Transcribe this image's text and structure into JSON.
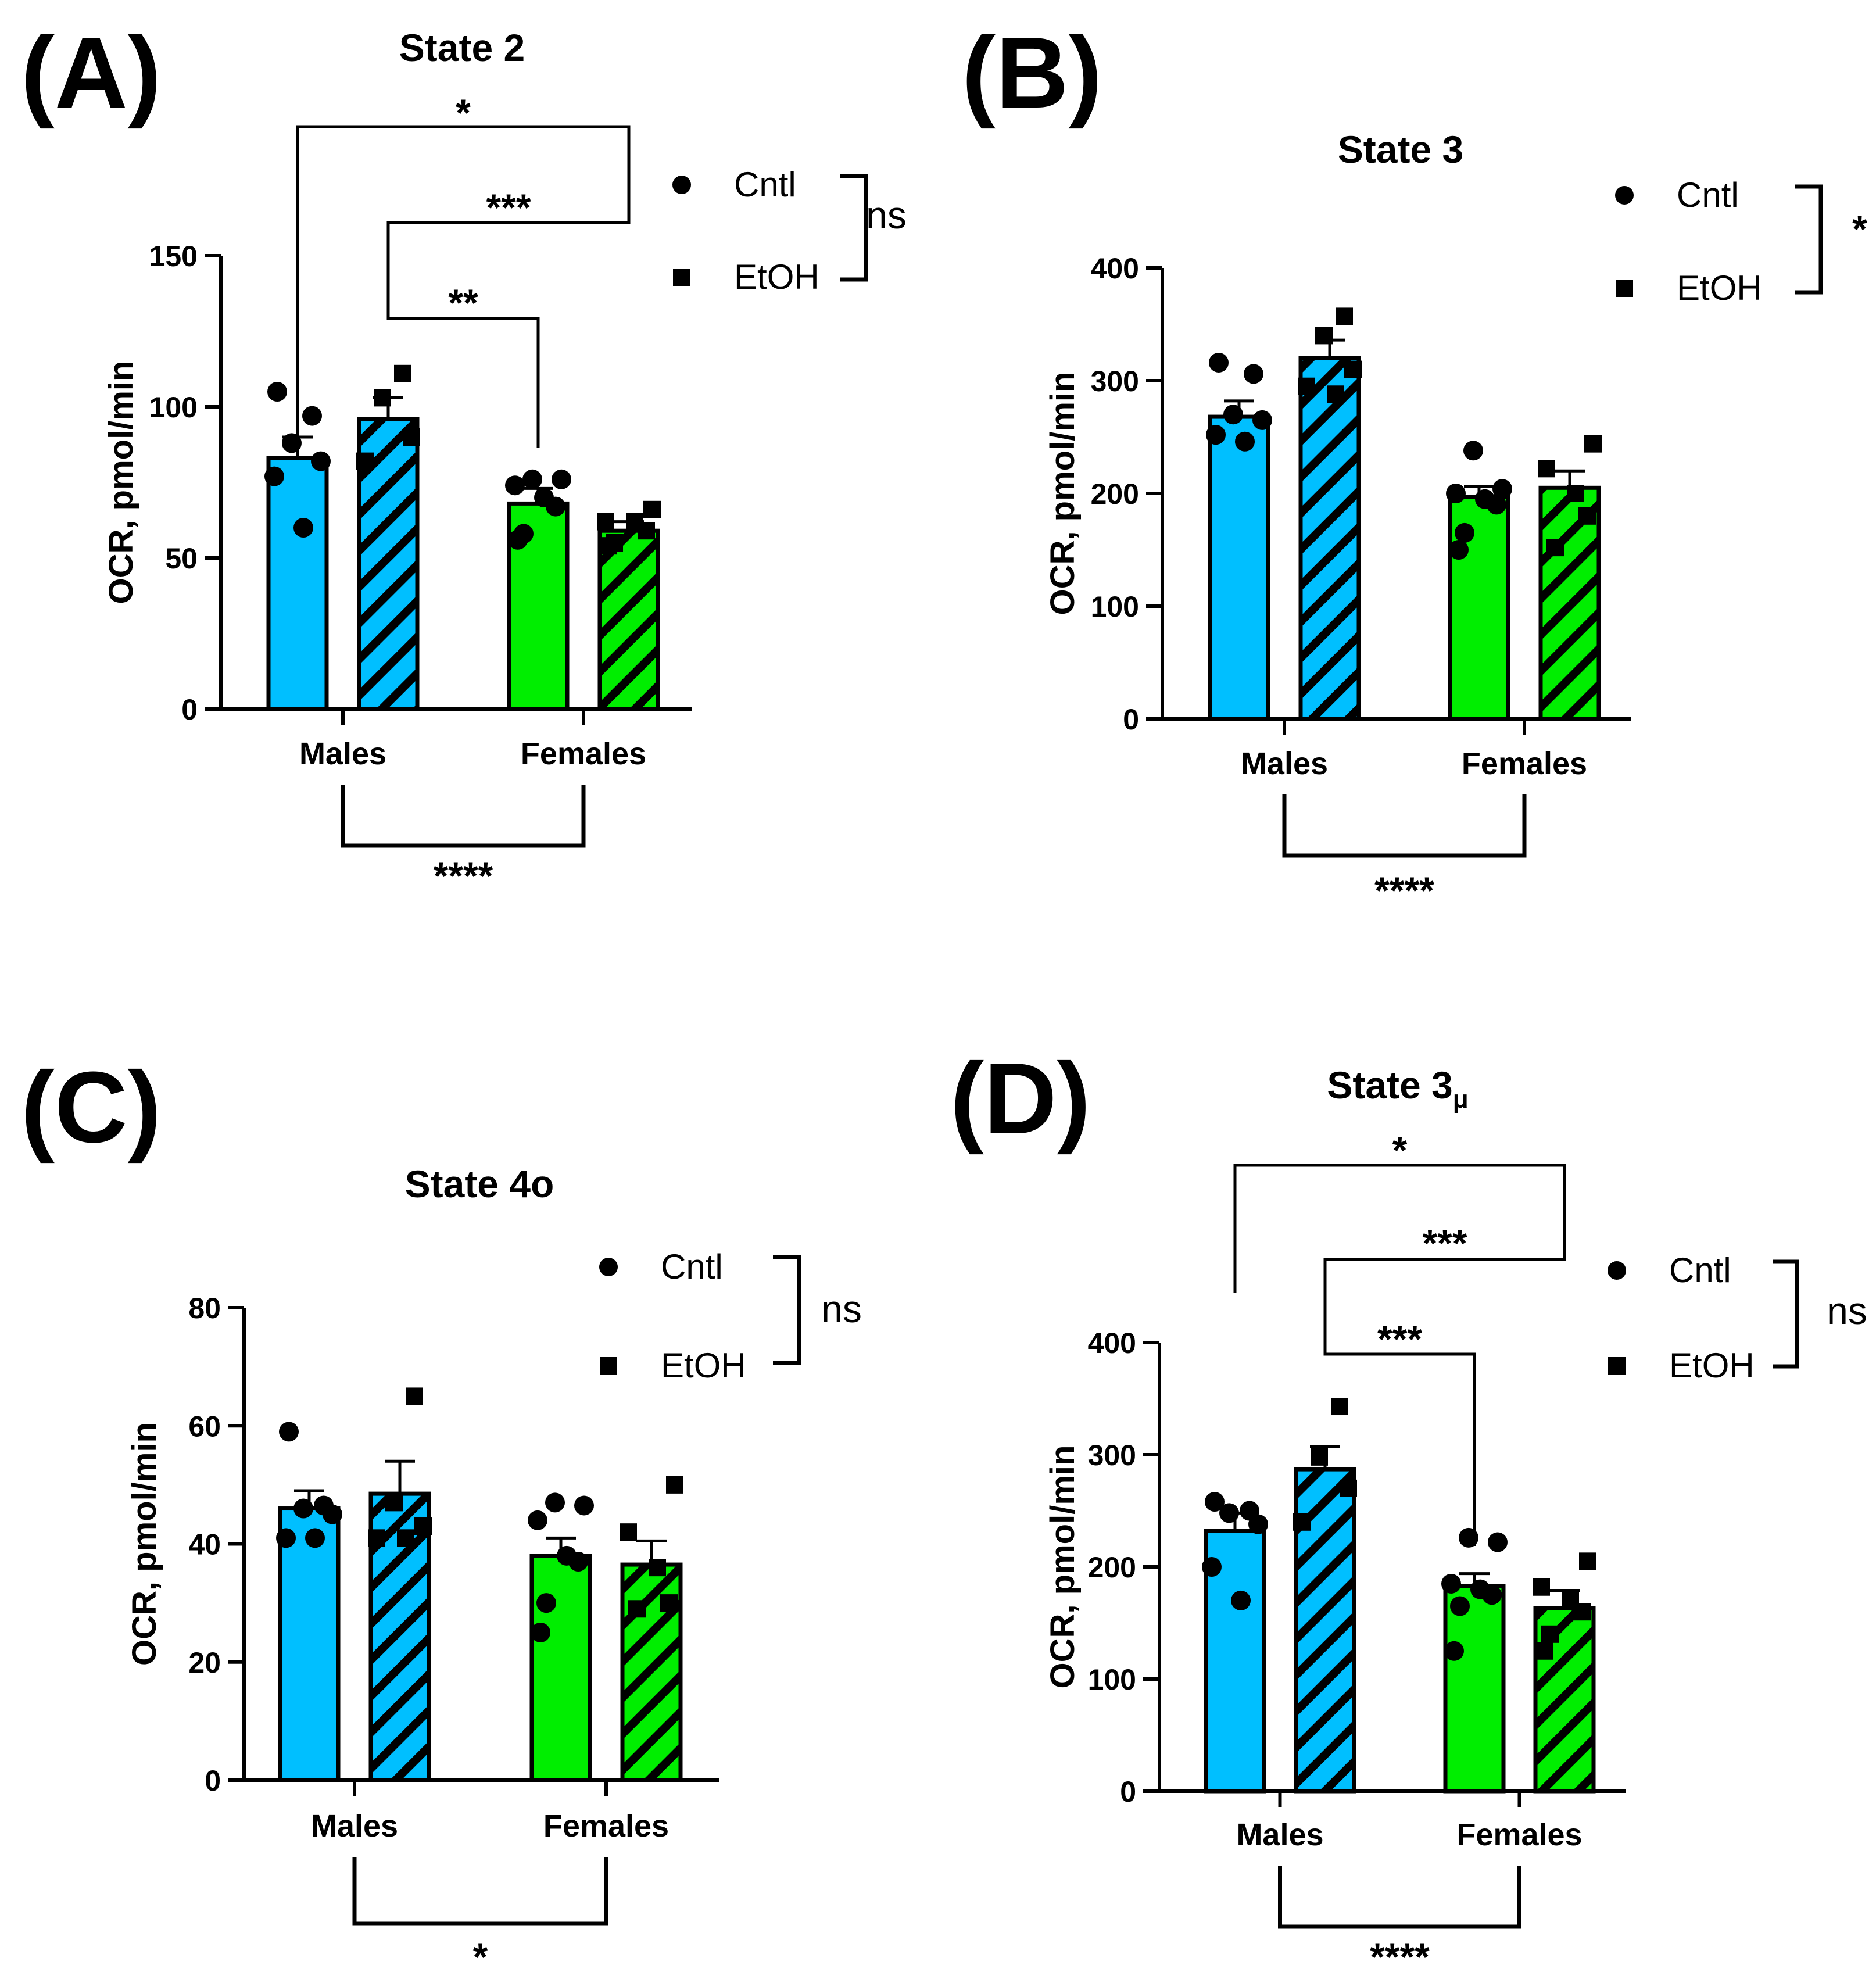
{
  "palette": {
    "male": "#00bfff",
    "female": "#00ee00",
    "line": "#000000",
    "background": "#ffffff"
  },
  "legend_icons": [
    "circle-marker-icon",
    "square-marker-icon"
  ],
  "chart_data": [
    {
      "panel": "(A)",
      "type": "bar",
      "title": "State 2",
      "title_sub": "",
      "ylabel": "OCR, pmol/min",
      "ylim": [
        0,
        150
      ],
      "yticks": [
        0,
        50,
        100,
        150
      ],
      "categories": [
        "Males",
        "Females"
      ],
      "series": [
        {
          "name": "Cntl",
          "values": [
            83,
            68
          ],
          "sem": [
            7,
            5
          ]
        },
        {
          "name": "EtOH",
          "values": [
            96,
            59
          ],
          "sem": [
            7,
            3
          ]
        }
      ],
      "points": [
        [
          105,
          97,
          88,
          82,
          77,
          60
        ],
        [
          111,
          103,
          90,
          82
        ],
        [
          76,
          76,
          74,
          70,
          67,
          58,
          56
        ],
        [
          66,
          62,
          62,
          59,
          55,
          54
        ]
      ],
      "legend": [
        "Cntl",
        "EtOH"
      ],
      "legend_test": "ns",
      "interaction_test": "****",
      "comparisons": [
        {
          "label": "*"
        },
        {
          "label": "***"
        },
        {
          "label": "**"
        }
      ]
    },
    {
      "panel": "(B)",
      "type": "bar",
      "title": "State 3",
      "title_sub": "",
      "ylabel": "OCR, pmol/min",
      "ylim": [
        0,
        400
      ],
      "yticks": [
        0,
        100,
        200,
        300,
        400
      ],
      "categories": [
        "Males",
        "Females"
      ],
      "series": [
        {
          "name": "Cntl",
          "values": [
            268,
            197
          ],
          "sem": [
            14,
            9
          ]
        },
        {
          "name": "EtOH",
          "values": [
            320,
            205
          ],
          "sem": [
            16,
            15
          ]
        }
      ],
      "points": [
        [
          316,
          306,
          270,
          265,
          252,
          246
        ],
        [
          357,
          340,
          310,
          295,
          288
        ],
        [
          238,
          204,
          200,
          195,
          190,
          165,
          150
        ],
        [
          244,
          222,
          200,
          180,
          152
        ]
      ],
      "legend": [
        "Cntl",
        "EtOH"
      ],
      "legend_test": "*",
      "interaction_test": "****",
      "comparisons": []
    },
    {
      "panel": "(C)",
      "type": "bar",
      "title": "State 4o",
      "title_sub": "",
      "ylabel": "OCR, pmol/min",
      "ylim": [
        0,
        80
      ],
      "yticks": [
        0,
        20,
        40,
        60,
        80
      ],
      "categories": [
        "Males",
        "Females"
      ],
      "series": [
        {
          "name": "Cntl",
          "values": [
            46,
            38
          ],
          "sem": [
            3,
            3
          ]
        },
        {
          "name": "EtOH",
          "values": [
            48.5,
            36.5
          ],
          "sem": [
            5.5,
            4
          ]
        }
      ],
      "points": [
        [
          59,
          46.5,
          46,
          45,
          41,
          41
        ],
        [
          65,
          47,
          43,
          41,
          41
        ],
        [
          47,
          46.5,
          44,
          38,
          37,
          30,
          25
        ],
        [
          50,
          42,
          36,
          30,
          29
        ]
      ],
      "legend": [
        "Cntl",
        "EtOH"
      ],
      "legend_test": "ns",
      "interaction_test": "*",
      "comparisons": []
    },
    {
      "panel": "(D)",
      "type": "bar",
      "title": "State 3",
      "title_sub": "μ",
      "ylabel": "OCR, pmol/min",
      "ylim": [
        0,
        400
      ],
      "yticks": [
        0,
        100,
        200,
        300,
        400
      ],
      "categories": [
        "Males",
        "Females"
      ],
      "series": [
        {
          "name": "Cntl",
          "values": [
            232,
            183
          ],
          "sem": [
            16,
            11
          ]
        },
        {
          "name": "EtOH",
          "values": [
            287,
            163
          ],
          "sem": [
            20,
            16
          ]
        }
      ],
      "points": [
        [
          258,
          250,
          248,
          238,
          200,
          170
        ],
        [
          343,
          298,
          270,
          240
        ],
        [
          226,
          222,
          185,
          180,
          175,
          165,
          125
        ],
        [
          205,
          182,
          170,
          160,
          140,
          125
        ]
      ],
      "legend": [
        "Cntl",
        "EtOH"
      ],
      "legend_test": "ns",
      "interaction_test": "****",
      "comparisons": [
        {
          "label": "*"
        },
        {
          "label": "***"
        },
        {
          "label": "***"
        }
      ]
    }
  ]
}
